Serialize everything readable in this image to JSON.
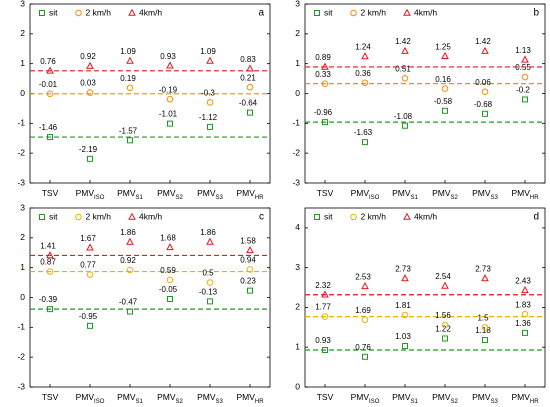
{
  "chart_data": [
    {
      "type": "scatter",
      "label": "a",
      "categories": [
        {
          "text": "TSV"
        },
        {
          "text": "PMV",
          "sub": "ISO"
        },
        {
          "text": "PMV",
          "sub": "S1"
        },
        {
          "text": "PMV",
          "sub": "S2"
        },
        {
          "text": "PMV",
          "sub": "S3"
        },
        {
          "text": "PMV",
          "sub": "HR"
        }
      ],
      "ylim": [
        -3,
        3
      ],
      "yticks": [
        -3,
        -2,
        -1,
        0,
        1,
        2,
        3
      ],
      "series": [
        {
          "name": "sit",
          "color": "#1f9a1f",
          "marker": "square",
          "values": [
            -1.46,
            -2.19,
            -1.57,
            -1.01,
            -1.12,
            -0.64
          ]
        },
        {
          "name": "2 km/h",
          "color": "#ff8c00",
          "marker": "circle",
          "values": [
            -0.01,
            0.03,
            0.19,
            -0.19,
            -0.3,
            0.21
          ]
        },
        {
          "name": "4km/h",
          "color": "#e8161f",
          "marker": "triangle",
          "values": [
            0.76,
            0.92,
            1.09,
            0.93,
            1.09,
            0.83
          ]
        }
      ]
    },
    {
      "type": "scatter",
      "label": "b",
      "categories": [
        {
          "text": "TSV"
        },
        {
          "text": "PMV",
          "sub": "ISO"
        },
        {
          "text": "PMV",
          "sub": "S1"
        },
        {
          "text": "PMV",
          "sub": "S2"
        },
        {
          "text": "PMV",
          "sub": "S3"
        },
        {
          "text": "PMV",
          "sub": "HR"
        }
      ],
      "ylim": [
        -3,
        3
      ],
      "yticks": [
        -3,
        -2,
        -1,
        0,
        1,
        2,
        3
      ],
      "series": [
        {
          "name": "sit",
          "color": "#1f9a1f",
          "marker": "square",
          "values": [
            -0.96,
            -1.63,
            -1.08,
            -0.58,
            -0.68,
            -0.2
          ]
        },
        {
          "name": "2 km/h",
          "color": "#ff8c00",
          "marker": "circle",
          "values": [
            0.33,
            0.36,
            0.51,
            0.16,
            0.06,
            0.55
          ]
        },
        {
          "name": "4km/h",
          "color": "#e8161f",
          "marker": "triangle",
          "values": [
            0.89,
            1.24,
            1.42,
            1.25,
            1.42,
            1.13
          ]
        }
      ]
    },
    {
      "type": "scatter",
      "label": "c",
      "categories": [
        {
          "text": "TSV"
        },
        {
          "text": "PMV",
          "sub": "ISO"
        },
        {
          "text": "PMV",
          "sub": "S1"
        },
        {
          "text": "PMV",
          "sub": "S2"
        },
        {
          "text": "PMV",
          "sub": "S3"
        },
        {
          "text": "PMV",
          "sub": "HR"
        }
      ],
      "ylim": [
        -3,
        3
      ],
      "yticks": [
        -3,
        -2,
        -1,
        0,
        1,
        2,
        3
      ],
      "series": [
        {
          "name": "sit",
          "color": "#1f9a1f",
          "marker": "square",
          "values": [
            -0.39,
            -0.95,
            -0.47,
            -0.05,
            -0.13,
            0.23
          ]
        },
        {
          "name": "2 km/h",
          "color": "#e6b400",
          "marker": "circle",
          "values": [
            0.87,
            0.77,
            0.92,
            0.59,
            0.5,
            0.94
          ]
        },
        {
          "name": "4km/h",
          "color": "#e8161f",
          "marker": "triangle",
          "values": [
            1.41,
            1.67,
            1.86,
            1.68,
            1.86,
            1.58
          ]
        }
      ]
    },
    {
      "type": "scatter",
      "label": "d",
      "categories": [
        {
          "text": "TSV"
        },
        {
          "text": "PMV",
          "sub": "ISO"
        },
        {
          "text": "PMV",
          "sub": "S1"
        },
        {
          "text": "PMV",
          "sub": "S2"
        },
        {
          "text": "PMV",
          "sub": "S3"
        },
        {
          "text": "PMV",
          "sub": "HR"
        }
      ],
      "ylim": [
        0,
        4.5
      ],
      "yticks": [
        0,
        1,
        2,
        3,
        4
      ],
      "series": [
        {
          "name": "sit",
          "color": "#1f9a1f",
          "marker": "square",
          "values": [
            0.93,
            0.76,
            1.03,
            1.22,
            1.18,
            1.36
          ]
        },
        {
          "name": "2 km/h",
          "color": "#e6b400",
          "marker": "circle",
          "values": [
            1.77,
            1.69,
            1.81,
            1.56,
            1.5,
            1.83
          ]
        },
        {
          "name": "4km/h",
          "color": "#e8161f",
          "marker": "triangle",
          "values": [
            2.32,
            2.53,
            2.73,
            2.54,
            2.73,
            2.43
          ]
        }
      ]
    }
  ]
}
